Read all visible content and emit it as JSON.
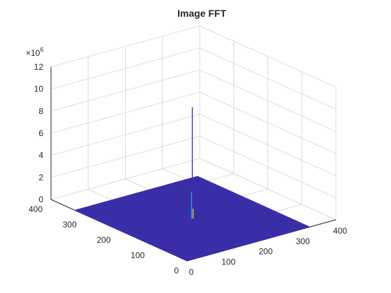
{
  "chart_data": {
    "type": "surface",
    "title": "Image FFT",
    "xlabel": "",
    "ylabel": "",
    "zlabel": "",
    "x_ticks": [
      "0",
      "100",
      "200",
      "300",
      "400"
    ],
    "y_ticks": [
      "0",
      "100",
      "200",
      "300",
      "400"
    ],
    "z_ticks": [
      "0",
      "2",
      "4",
      "6",
      "8",
      "10",
      "12"
    ],
    "z_exponent_label": "×10",
    "z_exponent": "6",
    "xlim": [
      0,
      400
    ],
    "ylim": [
      0,
      400
    ],
    "zlim": [
      0,
      12000000
    ],
    "surface": {
      "x_extent": [
        0,
        330
      ],
      "y_extent": [
        0,
        330
      ],
      "base_value": 0,
      "color": "#3a2ea8"
    },
    "peaks": [
      {
        "x": 165,
        "y": 165,
        "z": 10100000,
        "color": "#3a2ea8"
      },
      {
        "x": 164,
        "y": 166,
        "z": 2400000,
        "color": "#2f9fd0"
      },
      {
        "x": 166,
        "y": 164,
        "z": 900000,
        "color": "#e8d830"
      }
    ],
    "grid": true,
    "box": true
  }
}
